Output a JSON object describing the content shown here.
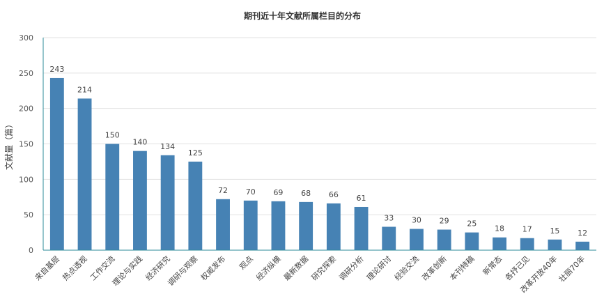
{
  "chart_data": {
    "type": "bar",
    "title": "期刊近十年文献所属栏目的分布",
    "ylabel": "文献量（篇）",
    "xlabel": "",
    "ylim": [
      0,
      300
    ],
    "yticks": [
      0,
      50,
      100,
      150,
      200,
      250,
      300
    ],
    "grid": true,
    "bar_color": "#4682b4",
    "categories": [
      "来自基层",
      "热点透视",
      "工作交流",
      "理论与实践",
      "经济研究",
      "调研与观察",
      "权威发布",
      "观点",
      "经济纵横",
      "最新数据",
      "研究探索",
      "调研分析",
      "理论研讨",
      "经验交流",
      "改革创新",
      "本刊特稿",
      "新常态",
      "各抒己见",
      "改革开放40年",
      "壮丽70年"
    ],
    "values": [
      243,
      214,
      150,
      140,
      134,
      125,
      72,
      70,
      69,
      68,
      66,
      61,
      33,
      30,
      29,
      25,
      18,
      17,
      15,
      12
    ]
  }
}
